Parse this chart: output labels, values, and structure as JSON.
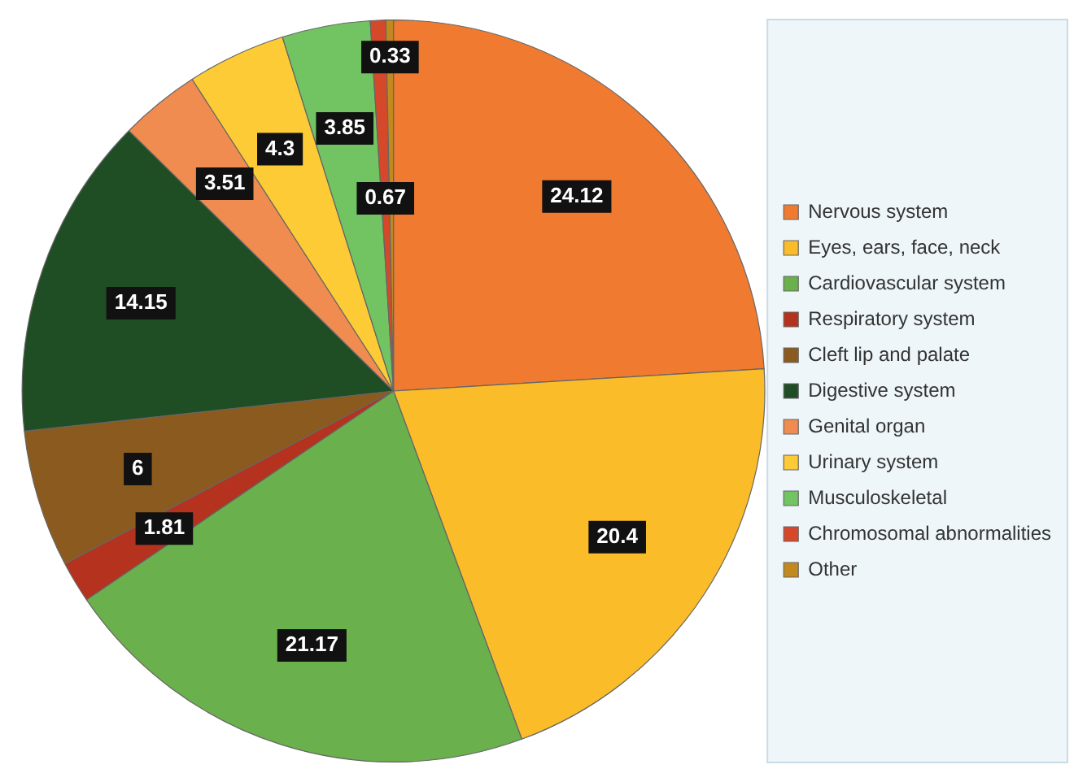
{
  "chart_data": {
    "type": "pie",
    "categories": [
      "Nervous system",
      "Eyes, ears, face, neck",
      "Cardiovascular system",
      "Respiratory system",
      "Cleft lip and palate",
      "Digestive system",
      "Genital organ",
      "Urinary system",
      "Musculoskeletal",
      "Chromosomal abnormalities",
      "Other"
    ],
    "values": [
      24.12,
      20.4,
      21.17,
      1.81,
      6,
      14.15,
      3.51,
      4.3,
      3.85,
      0.67,
      0.33
    ],
    "colors": [
      "#f07a30",
      "#fbbc2a",
      "#6ab04c",
      "#b5321e",
      "#8b5a1e",
      "#1f4d24",
      "#f08c50",
      "#fccb35",
      "#72c462",
      "#d5492a",
      "#c28a1e"
    ],
    "data_labels": true,
    "legend": "right"
  }
}
